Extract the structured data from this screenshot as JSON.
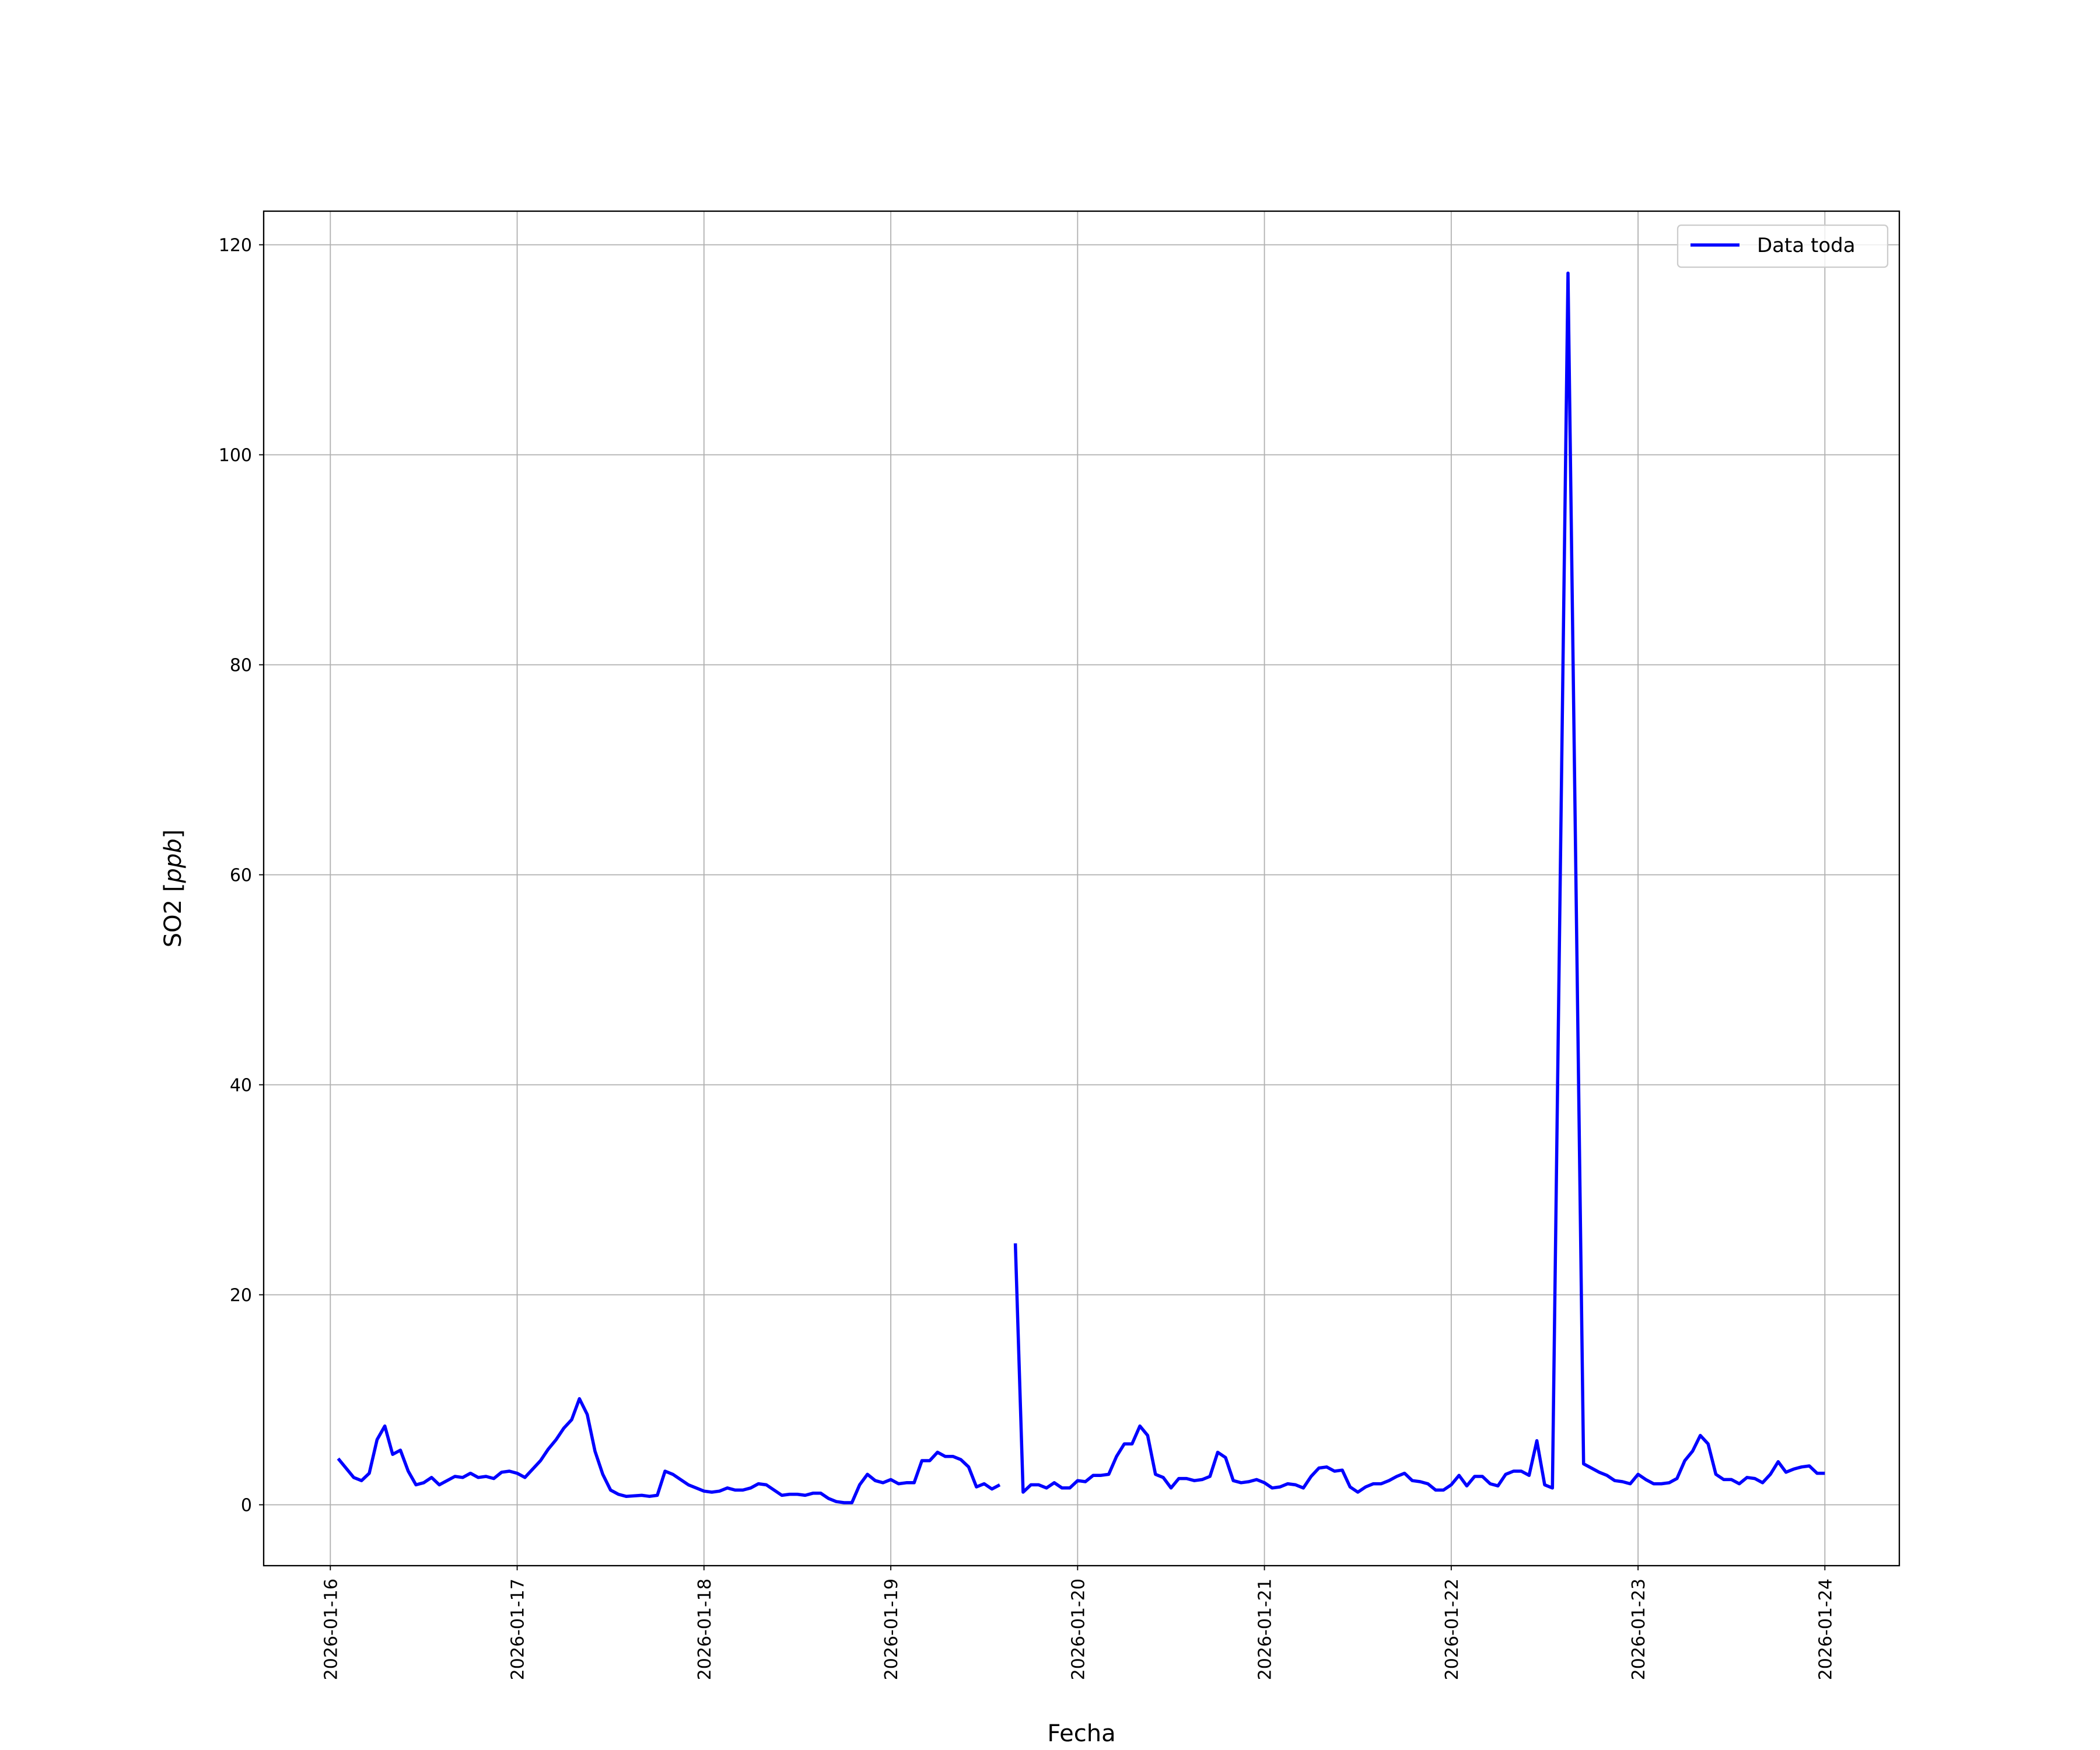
{
  "chart_data": {
    "type": "line",
    "title": "",
    "xlabel": "Fecha",
    "ylabel": "SO2 [ppb]",
    "ylabel_plain": "SO2 ",
    "ylabel_math": "ppb",
    "xlim": [
      "2026-01-15 15:26",
      "2026-01-24 09:34"
    ],
    "ylim": [
      -5.8,
      123.2
    ],
    "yticks": [
      0,
      20,
      40,
      60,
      80,
      100,
      120
    ],
    "xticks": [
      "2026-01-16",
      "2026-01-17",
      "2026-01-18",
      "2026-01-19",
      "2026-01-20",
      "2026-01-21",
      "2026-01-22",
      "2026-01-23",
      "2026-01-24"
    ],
    "grid": true,
    "legend_position": "upper right",
    "series": [
      {
        "name": "Data toda",
        "color": "#0000ff",
        "points": [
          [
            "2026-01-16 01:00",
            4.4
          ],
          [
            "2026-01-16 03:00",
            2.6
          ],
          [
            "2026-01-16 04:00",
            2.3
          ],
          [
            "2026-01-16 05:00",
            3.0
          ],
          [
            "2026-01-16 06:00",
            6.2
          ],
          [
            "2026-01-16 07:00",
            7.5
          ],
          [
            "2026-01-16 08:00",
            4.8
          ],
          [
            "2026-01-16 09:00",
            5.2
          ],
          [
            "2026-01-16 10:00",
            3.2
          ],
          [
            "2026-01-16 11:00",
            1.9
          ],
          [
            "2026-01-16 12:00",
            2.1
          ],
          [
            "2026-01-16 13:00",
            2.6
          ],
          [
            "2026-01-16 14:00",
            1.9
          ],
          [
            "2026-01-16 16:00",
            2.7
          ],
          [
            "2026-01-16 17:00",
            2.6
          ],
          [
            "2026-01-16 18:00",
            3.0
          ],
          [
            "2026-01-16 19:00",
            2.6
          ],
          [
            "2026-01-16 20:00",
            2.7
          ],
          [
            "2026-01-16 21:00",
            2.5
          ],
          [
            "2026-01-16 22:00",
            3.1
          ],
          [
            "2026-01-16 23:00",
            3.2
          ],
          [
            "2026-01-17 00:00",
            3.0
          ],
          [
            "2026-01-17 01:00",
            2.6
          ],
          [
            "2026-01-17 03:00",
            4.2
          ],
          [
            "2026-01-17 04:00",
            5.3
          ],
          [
            "2026-01-17 05:00",
            6.2
          ],
          [
            "2026-01-17 06:00",
            7.3
          ],
          [
            "2026-01-17 07:00",
            8.1
          ],
          [
            "2026-01-17 08:00",
            10.1
          ],
          [
            "2026-01-17 09:00",
            8.6
          ],
          [
            "2026-01-17 10:00",
            5.1
          ],
          [
            "2026-01-17 11:00",
            2.9
          ],
          [
            "2026-01-17 12:00",
            1.4
          ],
          [
            "2026-01-17 13:00",
            1.0
          ],
          [
            "2026-01-17 14:00",
            0.8
          ],
          [
            "2026-01-17 16:00",
            0.9
          ],
          [
            "2026-01-17 17:00",
            0.8
          ],
          [
            "2026-01-17 18:00",
            0.9
          ],
          [
            "2026-01-17 19:00",
            3.2
          ],
          [
            "2026-01-17 20:00",
            2.9
          ],
          [
            "2026-01-17 22:00",
            1.9
          ],
          [
            "2026-01-17 23:00",
            1.6
          ],
          [
            "2026-01-18 00:00",
            1.3
          ],
          [
            "2026-01-18 01:00",
            1.2
          ],
          [
            "2026-01-18 02:00",
            1.3
          ],
          [
            "2026-01-18 03:00",
            1.6
          ],
          [
            "2026-01-18 04:00",
            1.4
          ],
          [
            "2026-01-18 05:00",
            1.4
          ],
          [
            "2026-01-18 06:00",
            1.6
          ],
          [
            "2026-01-18 07:00",
            2.0
          ],
          [
            "2026-01-18 08:00",
            1.9
          ],
          [
            "2026-01-18 10:00",
            0.9
          ],
          [
            "2026-01-18 11:00",
            1.0
          ],
          [
            "2026-01-18 12:00",
            1.0
          ],
          [
            "2026-01-18 13:00",
            0.9
          ],
          [
            "2026-01-18 14:00",
            1.1
          ],
          [
            "2026-01-18 15:00",
            1.1
          ],
          [
            "2026-01-18 16:00",
            0.6
          ],
          [
            "2026-01-18 17:00",
            0.3
          ],
          [
            "2026-01-18 18:00",
            0.2
          ],
          [
            "2026-01-18 19:00",
            0.2
          ],
          [
            "2026-01-18 20:00",
            1.9
          ],
          [
            "2026-01-18 21:00",
            2.9
          ],
          [
            "2026-01-18 22:00",
            2.3
          ],
          [
            "2026-01-18 23:00",
            2.1
          ],
          [
            "2026-01-19 00:00",
            2.4
          ],
          [
            "2026-01-19 01:00",
            2.0
          ],
          [
            "2026-01-19 02:00",
            2.1
          ],
          [
            "2026-01-19 03:00",
            2.1
          ],
          [
            "2026-01-19 04:00",
            4.2
          ],
          [
            "2026-01-19 05:00",
            4.2
          ],
          [
            "2026-01-19 06:00",
            5.0
          ],
          [
            "2026-01-19 07:00",
            4.6
          ],
          [
            "2026-01-19 08:00",
            4.6
          ],
          [
            "2026-01-19 09:00",
            4.3
          ],
          [
            "2026-01-19 10:00",
            3.6
          ],
          [
            "2026-01-19 11:00",
            1.7
          ],
          [
            "2026-01-19 12:00",
            2.0
          ],
          [
            "2026-01-19 13:00",
            1.5
          ],
          [
            "2026-01-19 14:00",
            1.9
          ],
          [
            "2026-01-19 15:00",
            null
          ],
          [
            "2026-01-19 16:00",
            24.9
          ],
          [
            "2026-01-19 17:00",
            1.2
          ],
          [
            "2026-01-19 18:00",
            1.9
          ],
          [
            "2026-01-19 19:00",
            1.9
          ],
          [
            "2026-01-19 20:00",
            1.6
          ],
          [
            "2026-01-19 21:00",
            2.1
          ],
          [
            "2026-01-19 22:00",
            1.6
          ],
          [
            "2026-01-19 23:00",
            1.6
          ],
          [
            "2026-01-20 00:00",
            2.3
          ],
          [
            "2026-01-20 01:00",
            2.2
          ],
          [
            "2026-01-20 02:00",
            2.8
          ],
          [
            "2026-01-20 03:00",
            2.8
          ],
          [
            "2026-01-20 04:00",
            2.9
          ],
          [
            "2026-01-20 05:00",
            4.6
          ],
          [
            "2026-01-20 06:00",
            5.8
          ],
          [
            "2026-01-20 07:00",
            5.8
          ],
          [
            "2026-01-20 08:00",
            7.5
          ],
          [
            "2026-01-20 09:00",
            6.6
          ],
          [
            "2026-01-20 10:00",
            2.9
          ],
          [
            "2026-01-20 11:00",
            2.6
          ],
          [
            "2026-01-20 12:00",
            1.6
          ],
          [
            "2026-01-20 13:00",
            2.5
          ],
          [
            "2026-01-20 14:00",
            2.5
          ],
          [
            "2026-01-20 15:00",
            2.3
          ],
          [
            "2026-01-20 16:00",
            2.4
          ],
          [
            "2026-01-20 17:00",
            2.7
          ],
          [
            "2026-01-20 18:00",
            5.0
          ],
          [
            "2026-01-20 19:00",
            4.5
          ],
          [
            "2026-01-20 20:00",
            2.3
          ],
          [
            "2026-01-20 21:00",
            2.1
          ],
          [
            "2026-01-20 22:00",
            2.2
          ],
          [
            "2026-01-20 23:00",
            2.4
          ],
          [
            "2026-01-21 00:00",
            2.1
          ],
          [
            "2026-01-21 01:00",
            1.6
          ],
          [
            "2026-01-21 02:00",
            1.7
          ],
          [
            "2026-01-21 03:00",
            2.0
          ],
          [
            "2026-01-21 04:00",
            1.9
          ],
          [
            "2026-01-21 05:00",
            1.6
          ],
          [
            "2026-01-21 06:00",
            2.7
          ],
          [
            "2026-01-21 07:00",
            3.5
          ],
          [
            "2026-01-21 08:00",
            3.6
          ],
          [
            "2026-01-21 09:00",
            3.2
          ],
          [
            "2026-01-21 10:00",
            3.3
          ],
          [
            "2026-01-21 11:00",
            1.7
          ],
          [
            "2026-01-21 12:00",
            1.2
          ],
          [
            "2026-01-21 13:00",
            1.7
          ],
          [
            "2026-01-21 14:00",
            2.0
          ],
          [
            "2026-01-21 15:00",
            2.0
          ],
          [
            "2026-01-21 16:00",
            2.3
          ],
          [
            "2026-01-21 17:00",
            2.7
          ],
          [
            "2026-01-21 18:00",
            3.0
          ],
          [
            "2026-01-21 19:00",
            2.3
          ],
          [
            "2026-01-21 20:00",
            2.2
          ],
          [
            "2026-01-21 21:00",
            2.0
          ],
          [
            "2026-01-21 22:00",
            1.4
          ],
          [
            "2026-01-21 23:00",
            1.4
          ],
          [
            "2026-01-22 00:00",
            1.9
          ],
          [
            "2026-01-22 01:00",
            2.8
          ],
          [
            "2026-01-22 02:00",
            1.8
          ],
          [
            "2026-01-22 03:00",
            2.7
          ],
          [
            "2026-01-22 04:00",
            2.7
          ],
          [
            "2026-01-22 05:00",
            2.0
          ],
          [
            "2026-01-22 06:00",
            1.8
          ],
          [
            "2026-01-22 07:00",
            2.9
          ],
          [
            "2026-01-22 08:00",
            3.2
          ],
          [
            "2026-01-22 09:00",
            3.2
          ],
          [
            "2026-01-22 10:00",
            2.8
          ],
          [
            "2026-01-22 11:00",
            6.1
          ],
          [
            "2026-01-22 12:00",
            1.9
          ],
          [
            "2026-01-22 13:00",
            1.6
          ],
          [
            "2026-01-22 15:00",
            117.3
          ],
          [
            "2026-01-22 17:00",
            3.9
          ],
          [
            "2026-01-22 18:00",
            3.5
          ],
          [
            "2026-01-22 19:00",
            3.1
          ],
          [
            "2026-01-22 20:00",
            2.8
          ],
          [
            "2026-01-22 21:00",
            2.3
          ],
          [
            "2026-01-22 22:00",
            2.2
          ],
          [
            "2026-01-22 23:00",
            2.0
          ],
          [
            "2026-01-23 00:00",
            2.9
          ],
          [
            "2026-01-23 01:00",
            2.4
          ],
          [
            "2026-01-23 02:00",
            2.0
          ],
          [
            "2026-01-23 03:00",
            2.0
          ],
          [
            "2026-01-23 04:00",
            2.1
          ],
          [
            "2026-01-23 05:00",
            2.5
          ],
          [
            "2026-01-23 06:00",
            4.2
          ],
          [
            "2026-01-23 07:00",
            5.1
          ],
          [
            "2026-01-23 08:00",
            6.6
          ],
          [
            "2026-01-23 09:00",
            5.8
          ],
          [
            "2026-01-23 10:00",
            2.9
          ],
          [
            "2026-01-23 11:00",
            2.4
          ],
          [
            "2026-01-23 12:00",
            2.4
          ],
          [
            "2026-01-23 13:00",
            2.0
          ],
          [
            "2026-01-23 14:00",
            2.6
          ],
          [
            "2026-01-23 15:00",
            2.5
          ],
          [
            "2026-01-23 16:00",
            2.1
          ],
          [
            "2026-01-23 17:00",
            2.9
          ],
          [
            "2026-01-23 18:00",
            4.1
          ],
          [
            "2026-01-23 19:00",
            3.1
          ],
          [
            "2026-01-23 20:00",
            3.4
          ],
          [
            "2026-01-23 21:00",
            3.6
          ],
          [
            "2026-01-23 22:00",
            3.7
          ],
          [
            "2026-01-23 23:00",
            3.0
          ],
          [
            "2026-01-24 00:00",
            3.0
          ]
        ]
      }
    ]
  },
  "colors": {
    "grid": "#b0b0b0",
    "axes": "#000000",
    "line": "#0000ff"
  }
}
